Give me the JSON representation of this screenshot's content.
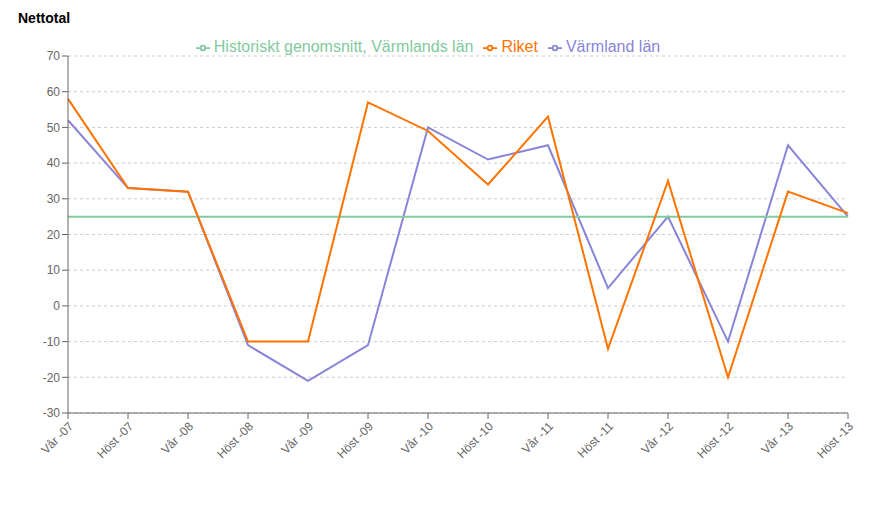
{
  "chart_data": {
    "type": "line",
    "ylabel": "Nettotal",
    "categories": [
      "Vår -07",
      "Höst -07",
      "Vår -08",
      "Höst -08",
      "Vår -09",
      "Höst -09",
      "Vår -10",
      "Höst -10",
      "Vår -11",
      "Höst -11",
      "Vår -12",
      "Höst -12",
      "Vår -13",
      "Höst -13"
    ],
    "series": [
      {
        "name": "Värmland län",
        "color": "#8884d8",
        "values": [
          52,
          33,
          32,
          -11,
          -21,
          -11,
          50,
          41,
          45,
          5,
          25,
          -10,
          45,
          25
        ]
      },
      {
        "name": "Historiskt genomsnitt, Värmlands län",
        "color": "#82ca9d",
        "values": [
          25,
          25,
          25,
          25,
          25,
          25,
          25,
          25,
          25,
          25,
          25,
          25,
          25,
          25
        ]
      },
      {
        "name": "Riket",
        "color": "#ff7300",
        "values": [
          58,
          33,
          32,
          -10,
          -10,
          57,
          49,
          34,
          53,
          -12,
          35,
          -20,
          32,
          26
        ]
      }
    ],
    "ylim": [
      -30,
      70
    ],
    "yticks": [
      -30,
      -20,
      -10,
      0,
      10,
      20,
      30,
      40,
      50,
      60,
      70
    ],
    "grid": true,
    "legend": "top"
  }
}
